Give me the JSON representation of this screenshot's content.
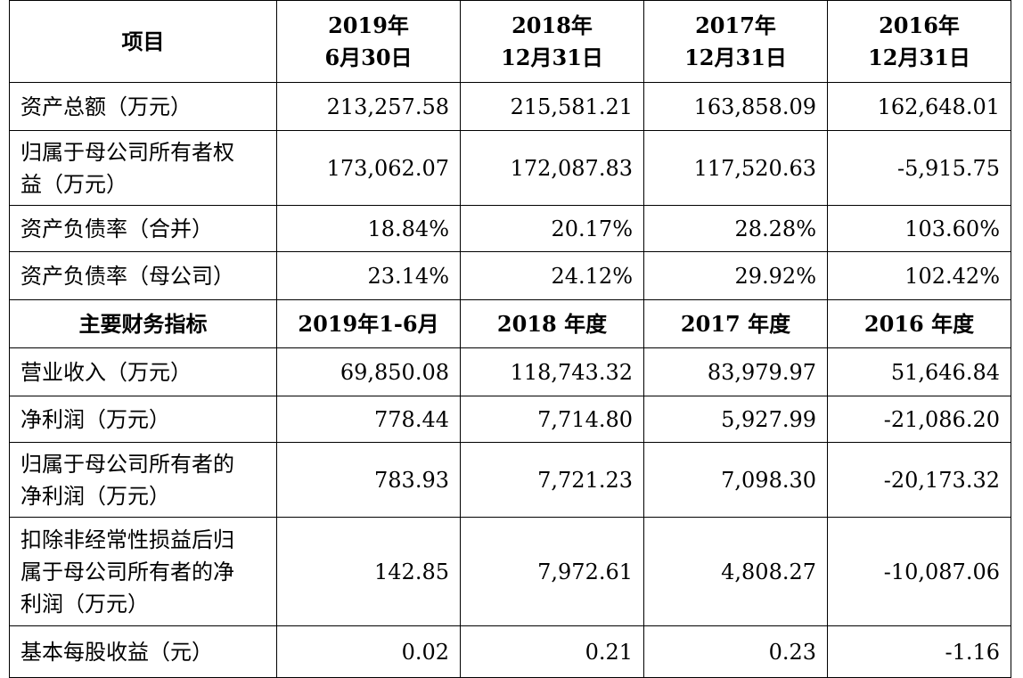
{
  "balance_header": {
    "item_label": "项目",
    "periods": [
      {
        "line1": "2019年",
        "line2": "6月30日"
      },
      {
        "line1": "2018年",
        "line2": "12月31日"
      },
      {
        "line1": "2017年",
        "line2": "12月31日"
      },
      {
        "line1": "2016年",
        "line2": "12月31日"
      }
    ]
  },
  "balance_rows": [
    {
      "label_lines": [
        "资产总额（万元）"
      ],
      "values": [
        "213,257.58",
        "215,581.21",
        "163,858.09",
        "162,648.01"
      ]
    },
    {
      "label_lines": [
        "归属于母公司所有者权",
        "益（万元）"
      ],
      "values": [
        "173,062.07",
        "172,087.83",
        "117,520.63",
        "-5,915.75"
      ]
    },
    {
      "label_lines": [
        "资产负债率（合并）"
      ],
      "values": [
        "18.84%",
        "20.17%",
        "28.28%",
        "103.60%"
      ]
    },
    {
      "label_lines": [
        "资产负债率（母公司）"
      ],
      "values": [
        "23.14%",
        "24.12%",
        "29.92%",
        "102.42%"
      ]
    }
  ],
  "indicator_header": {
    "item_label": "主要财务指标",
    "periods": [
      "2019年1-6月",
      "2018 年度",
      "2017 年度",
      "2016 年度"
    ]
  },
  "indicator_rows": [
    {
      "label_lines": [
        "营业收入（万元）"
      ],
      "values": [
        "69,850.08",
        "118,743.32",
        "83,979.97",
        "51,646.84"
      ]
    },
    {
      "label_lines": [
        "净利润（万元）"
      ],
      "values": [
        "778.44",
        "7,714.80",
        "5,927.99",
        "-21,086.20"
      ]
    },
    {
      "label_lines": [
        "归属于母公司所有者的",
        "净利润（万元）"
      ],
      "values": [
        "783.93",
        "7,721.23",
        "7,098.30",
        "-20,173.32"
      ]
    },
    {
      "label_lines": [
        "扣除非经常性损益后归",
        "属于母公司所有者的净",
        "利润（万元）"
      ],
      "values": [
        "142.85",
        "7,972.61",
        "4,808.27",
        "-10,087.06"
      ]
    },
    {
      "label_lines": [
        "基本每股收益（元）"
      ],
      "values": [
        "0.02",
        "0.21",
        "0.23",
        "-1.16"
      ]
    }
  ]
}
